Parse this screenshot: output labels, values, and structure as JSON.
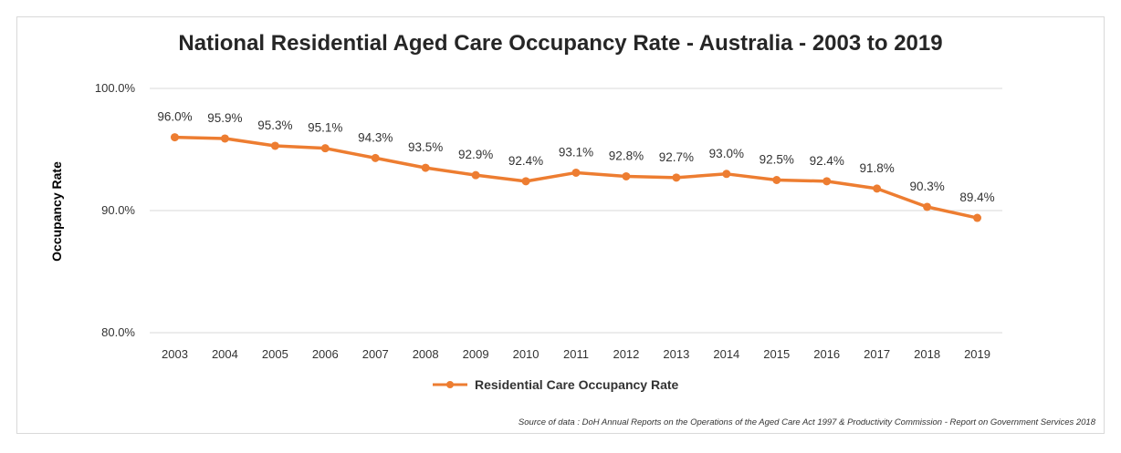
{
  "chart_data": {
    "type": "line",
    "title": "National Residential Aged Care Occupancy Rate - Australia - 2003 to 2019",
    "xlabel": "",
    "ylabel": "Occupancy  Rate",
    "ylim": [
      80,
      100
    ],
    "yticks": [
      "80.0%",
      "90.0%",
      "100.0%"
    ],
    "ytick_values": [
      80,
      90,
      100
    ],
    "grid": true,
    "legend_position": "bottom",
    "categories": [
      "2003",
      "2004",
      "2005",
      "2006",
      "2007",
      "2008",
      "2009",
      "2010",
      "2011",
      "2012",
      "2013",
      "2014",
      "2015",
      "2016",
      "2017",
      "2018",
      "2019"
    ],
    "series": [
      {
        "name": "Residential Care Occupancy Rate",
        "color": "#ED7D31",
        "values": [
          96.0,
          95.9,
          95.3,
          95.1,
          94.3,
          93.5,
          92.9,
          92.4,
          93.1,
          92.8,
          92.7,
          93.0,
          92.5,
          92.4,
          91.8,
          90.3,
          89.4
        ],
        "labels": [
          "96.0%",
          "95.9%",
          "95.3%",
          "95.1%",
          "94.3%",
          "93.5%",
          "92.9%",
          "92.4%",
          "93.1%",
          "92.8%",
          "92.7%",
          "93.0%",
          "92.5%",
          "92.4%",
          "91.8%",
          "90.3%",
          "89.4%"
        ]
      }
    ]
  },
  "source": "Source of data : DoH Annual Reports on the Operations of the Aged Care Act 1997 & Productivity Commission - Report on Government Services 2018"
}
